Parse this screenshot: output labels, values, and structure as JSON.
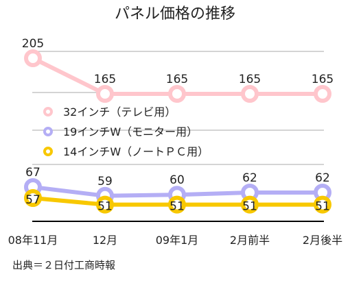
{
  "chart_data": {
    "type": "line",
    "title": "パネル価格の推移",
    "categories": [
      "08年11月",
      "12月",
      "09年1月",
      "2月前半",
      "2月後半"
    ],
    "series": [
      {
        "name": "32インチ（テレビ用）",
        "color": "#ffc6cc",
        "values": [
          205,
          165,
          165,
          165,
          165
        ]
      },
      {
        "name": "19インチW（モニター用）",
        "color": "#b4aef5",
        "values": [
          67,
          59,
          60,
          62,
          62
        ]
      },
      {
        "name": "14インチW（ノートＰＣ用）",
        "color": "#f8c800",
        "values": [
          57,
          51,
          51,
          51,
          51
        ]
      }
    ],
    "grid": true,
    "legend_position": "left-middle",
    "xlabel": "",
    "ylabel": ""
  },
  "source_note": "出典＝２日付工商時報"
}
